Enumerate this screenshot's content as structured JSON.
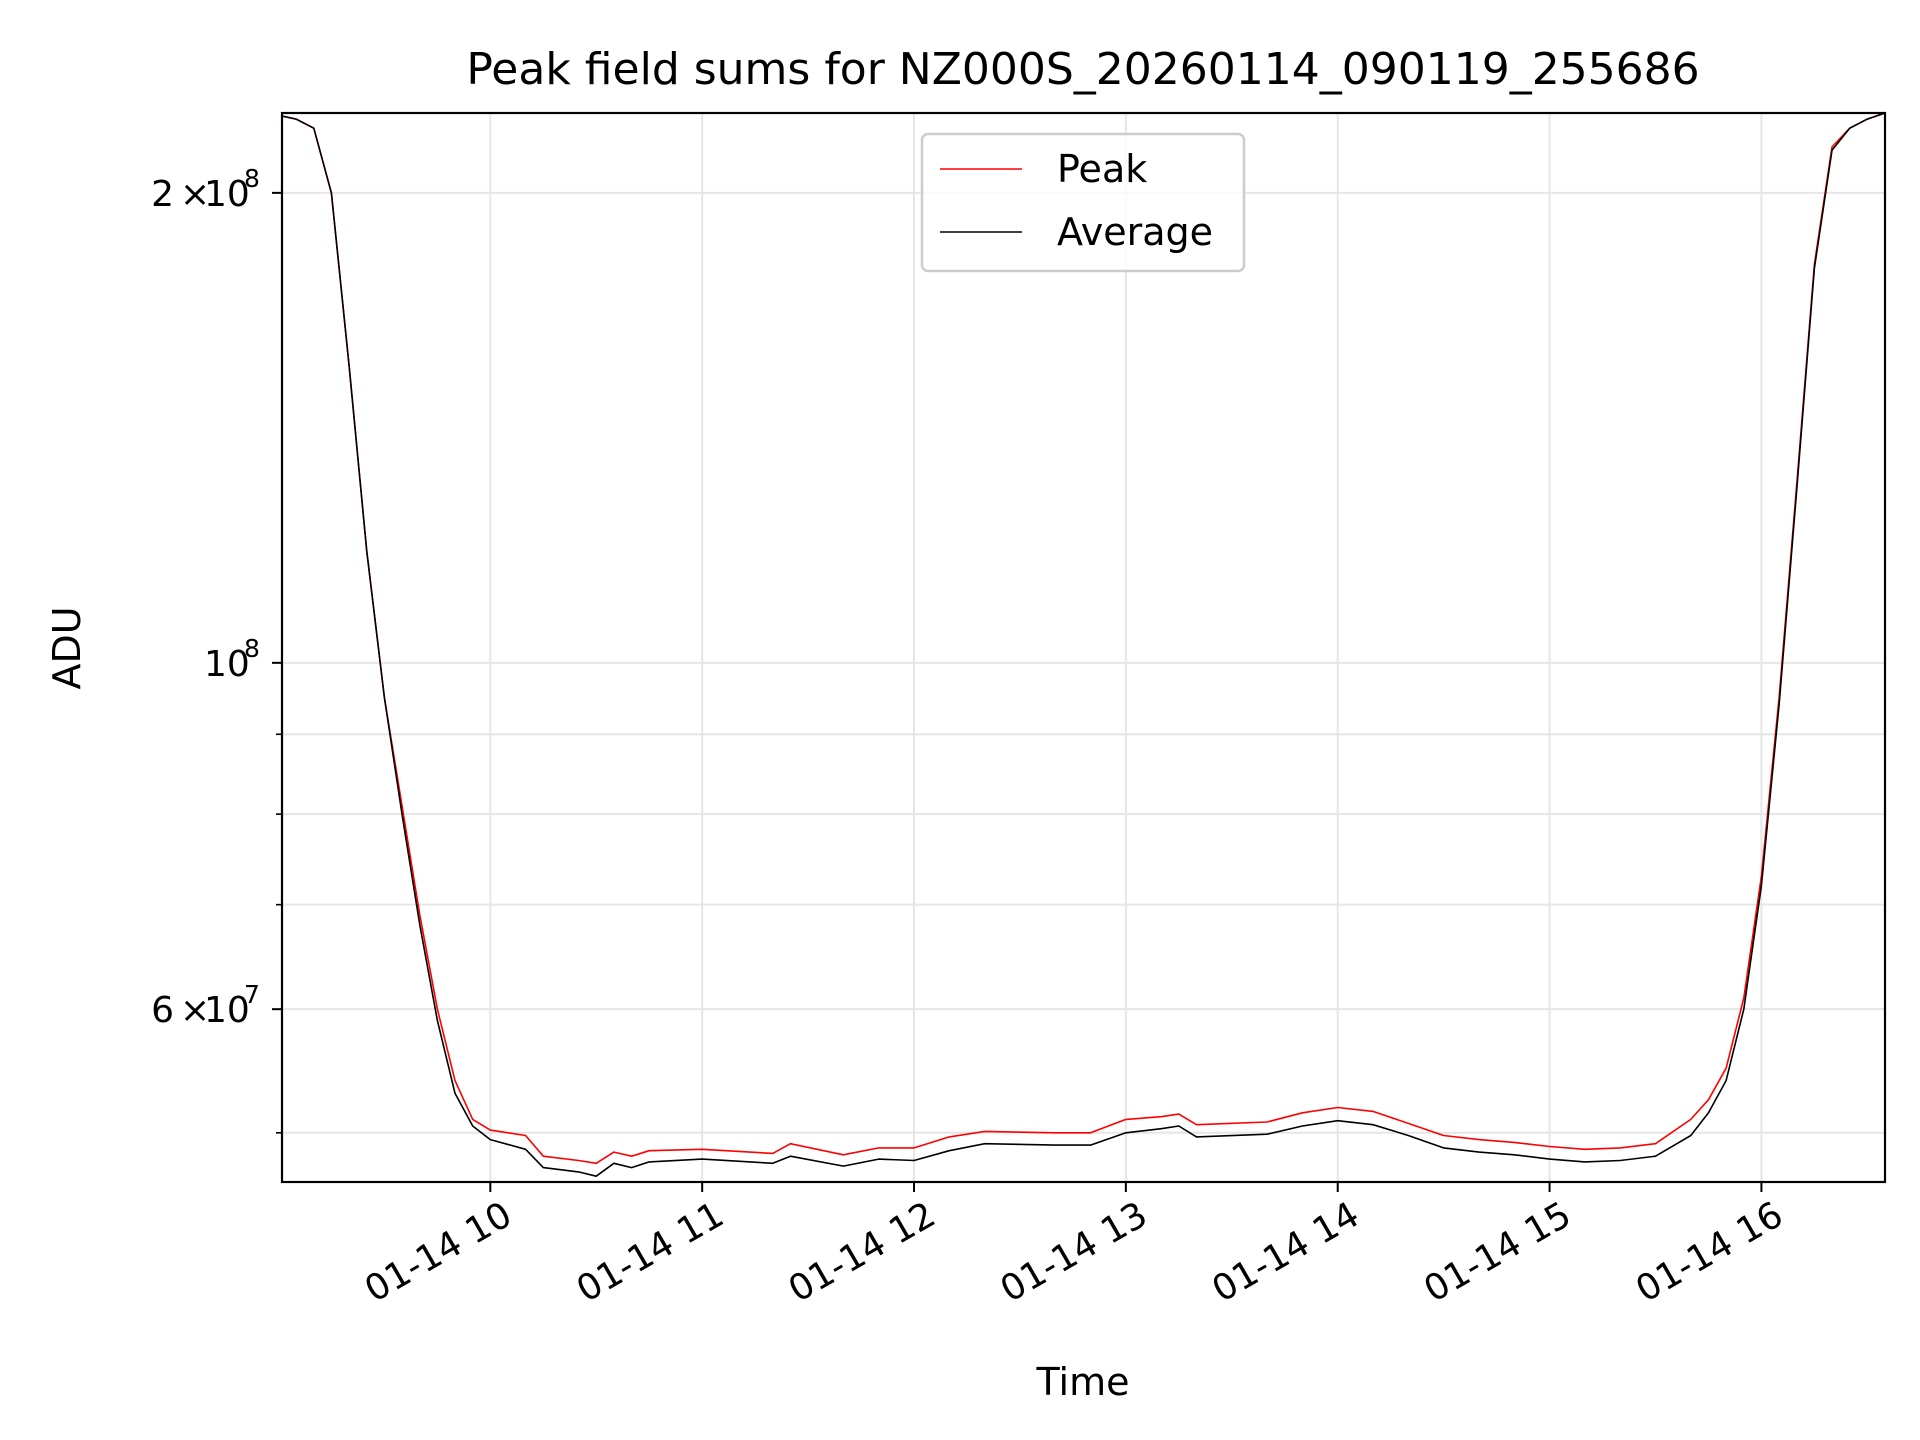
{
  "chart_data": {
    "type": "line",
    "title": "Peak field sums for NZ000S_20260114_090119_255686",
    "xlabel": "Time",
    "ylabel": "ADU",
    "yscale": "log",
    "grid": true,
    "legend_position": "upper center",
    "x_tick_labels": [
      "01-14 10",
      "01-14 11",
      "01-14 12",
      "01-14 13",
      "01-14 14",
      "01-14 15",
      "01-14 16"
    ],
    "x_tick_values": [
      "2026-01-14 10:00",
      "2026-01-14 11:00",
      "2026-01-14 12:00",
      "2026-01-14 13:00",
      "2026-01-14 14:00",
      "2026-01-14 15:00",
      "2026-01-14 16:00"
    ],
    "y_tick_labels": [
      {
        "value": 60000000,
        "mantissa": "6",
        "exp": "7"
      },
      {
        "value": 100000000,
        "mantissa": "",
        "exp": "8"
      },
      {
        "value": 200000000,
        "mantissa": "2",
        "exp": "8"
      }
    ],
    "y_minor_ticks": [
      50000000,
      70000000,
      80000000,
      90000000
    ],
    "xlim": [
      "2026-01-14 09:01",
      "2026-01-14 16:35"
    ],
    "ylim": [
      46500000,
      225000000
    ],
    "series": [
      {
        "name": "Peak",
        "color": "#ff0000",
        "x": [
          "2026-01-14 09:01",
          "2026-01-14 09:05",
          "2026-01-14 09:10",
          "2026-01-14 09:15",
          "2026-01-14 09:20",
          "2026-01-14 09:25",
          "2026-01-14 09:30",
          "2026-01-14 09:35",
          "2026-01-14 09:40",
          "2026-01-14 09:45",
          "2026-01-14 09:50",
          "2026-01-14 09:55",
          "2026-01-14 10:00",
          "2026-01-14 10:10",
          "2026-01-14 10:15",
          "2026-01-14 10:25",
          "2026-01-14 10:30",
          "2026-01-14 10:35",
          "2026-01-14 10:40",
          "2026-01-14 10:45",
          "2026-01-14 11:00",
          "2026-01-14 11:20",
          "2026-01-14 11:25",
          "2026-01-14 11:40",
          "2026-01-14 11:50",
          "2026-01-14 12:00",
          "2026-01-14 12:10",
          "2026-01-14 12:20",
          "2026-01-14 12:40",
          "2026-01-14 12:50",
          "2026-01-14 13:00",
          "2026-01-14 13:10",
          "2026-01-14 13:15",
          "2026-01-14 13:20",
          "2026-01-14 13:40",
          "2026-01-14 13:50",
          "2026-01-14 14:00",
          "2026-01-14 14:10",
          "2026-01-14 14:20",
          "2026-01-14 14:30",
          "2026-01-14 14:40",
          "2026-01-14 14:50",
          "2026-01-14 15:00",
          "2026-01-14 15:10",
          "2026-01-14 15:20",
          "2026-01-14 15:30",
          "2026-01-14 15:40",
          "2026-01-14 15:45",
          "2026-01-14 15:50",
          "2026-01-14 15:55",
          "2026-01-14 16:00",
          "2026-01-14 16:05",
          "2026-01-14 16:10",
          "2026-01-14 16:15",
          "2026-01-14 16:20",
          "2026-01-14 16:25",
          "2026-01-14 16:30",
          "2026-01-14 16:35"
        ],
        "values": [
          224000000,
          223000000,
          220000000,
          200000000,
          155000000,
          118000000,
          95000000,
          81000000,
          69000000,
          60000000,
          54000000,
          51000000,
          50200000,
          49800000,
          48300000,
          48000000,
          47800000,
          48600000,
          48300000,
          48700000,
          48800000,
          48500000,
          49200000,
          48400000,
          48900000,
          48900000,
          49700000,
          50100000,
          50000000,
          50000000,
          51000000,
          51200000,
          51400000,
          50600000,
          50800000,
          51500000,
          51900000,
          51600000,
          50700000,
          49800000,
          49500000,
          49300000,
          49000000,
          48800000,
          48900000,
          49200000,
          51000000,
          52500000,
          55000000,
          61000000,
          73000000,
          95000000,
          130000000,
          180000000,
          214000000,
          220000000,
          223000000,
          225000000
        ]
      },
      {
        "name": "Average",
        "color": "#000000",
        "x": [
          "2026-01-14 09:01",
          "2026-01-14 09:05",
          "2026-01-14 09:10",
          "2026-01-14 09:15",
          "2026-01-14 09:20",
          "2026-01-14 09:25",
          "2026-01-14 09:30",
          "2026-01-14 09:35",
          "2026-01-14 09:40",
          "2026-01-14 09:45",
          "2026-01-14 09:50",
          "2026-01-14 09:55",
          "2026-01-14 10:00",
          "2026-01-14 10:10",
          "2026-01-14 10:15",
          "2026-01-14 10:25",
          "2026-01-14 10:30",
          "2026-01-14 10:35",
          "2026-01-14 10:40",
          "2026-01-14 10:45",
          "2026-01-14 11:00",
          "2026-01-14 11:20",
          "2026-01-14 11:25",
          "2026-01-14 11:40",
          "2026-01-14 11:50",
          "2026-01-14 12:00",
          "2026-01-14 12:10",
          "2026-01-14 12:20",
          "2026-01-14 12:40",
          "2026-01-14 12:50",
          "2026-01-14 13:00",
          "2026-01-14 13:10",
          "2026-01-14 13:15",
          "2026-01-14 13:20",
          "2026-01-14 13:40",
          "2026-01-14 13:50",
          "2026-01-14 14:00",
          "2026-01-14 14:10",
          "2026-01-14 14:20",
          "2026-01-14 14:30",
          "2026-01-14 14:40",
          "2026-01-14 14:50",
          "2026-01-14 15:00",
          "2026-01-14 15:10",
          "2026-01-14 15:20",
          "2026-01-14 15:30",
          "2026-01-14 15:40",
          "2026-01-14 15:45",
          "2026-01-14 15:50",
          "2026-01-14 15:55",
          "2026-01-14 16:00",
          "2026-01-14 16:05",
          "2026-01-14 16:10",
          "2026-01-14 16:15",
          "2026-01-14 16:20",
          "2026-01-14 16:25",
          "2026-01-14 16:30",
          "2026-01-14 16:35"
        ],
        "values": [
          224000000,
          223000000,
          220000000,
          200000000,
          155000000,
          118000000,
          95000000,
          80000000,
          68000000,
          59000000,
          53000000,
          50500000,
          49500000,
          48800000,
          47500000,
          47200000,
          46900000,
          47800000,
          47500000,
          47900000,
          48100000,
          47800000,
          48300000,
          47600000,
          48100000,
          48000000,
          48700000,
          49200000,
          49100000,
          49100000,
          50000000,
          50300000,
          50500000,
          49700000,
          49900000,
          50500000,
          50900000,
          50600000,
          49800000,
          48900000,
          48600000,
          48400000,
          48100000,
          47900000,
          48000000,
          48300000,
          49800000,
          51500000,
          54000000,
          60000000,
          72000000,
          94000000,
          129000000,
          179000000,
          213000000,
          220000000,
          223000000,
          225000000
        ]
      }
    ]
  }
}
